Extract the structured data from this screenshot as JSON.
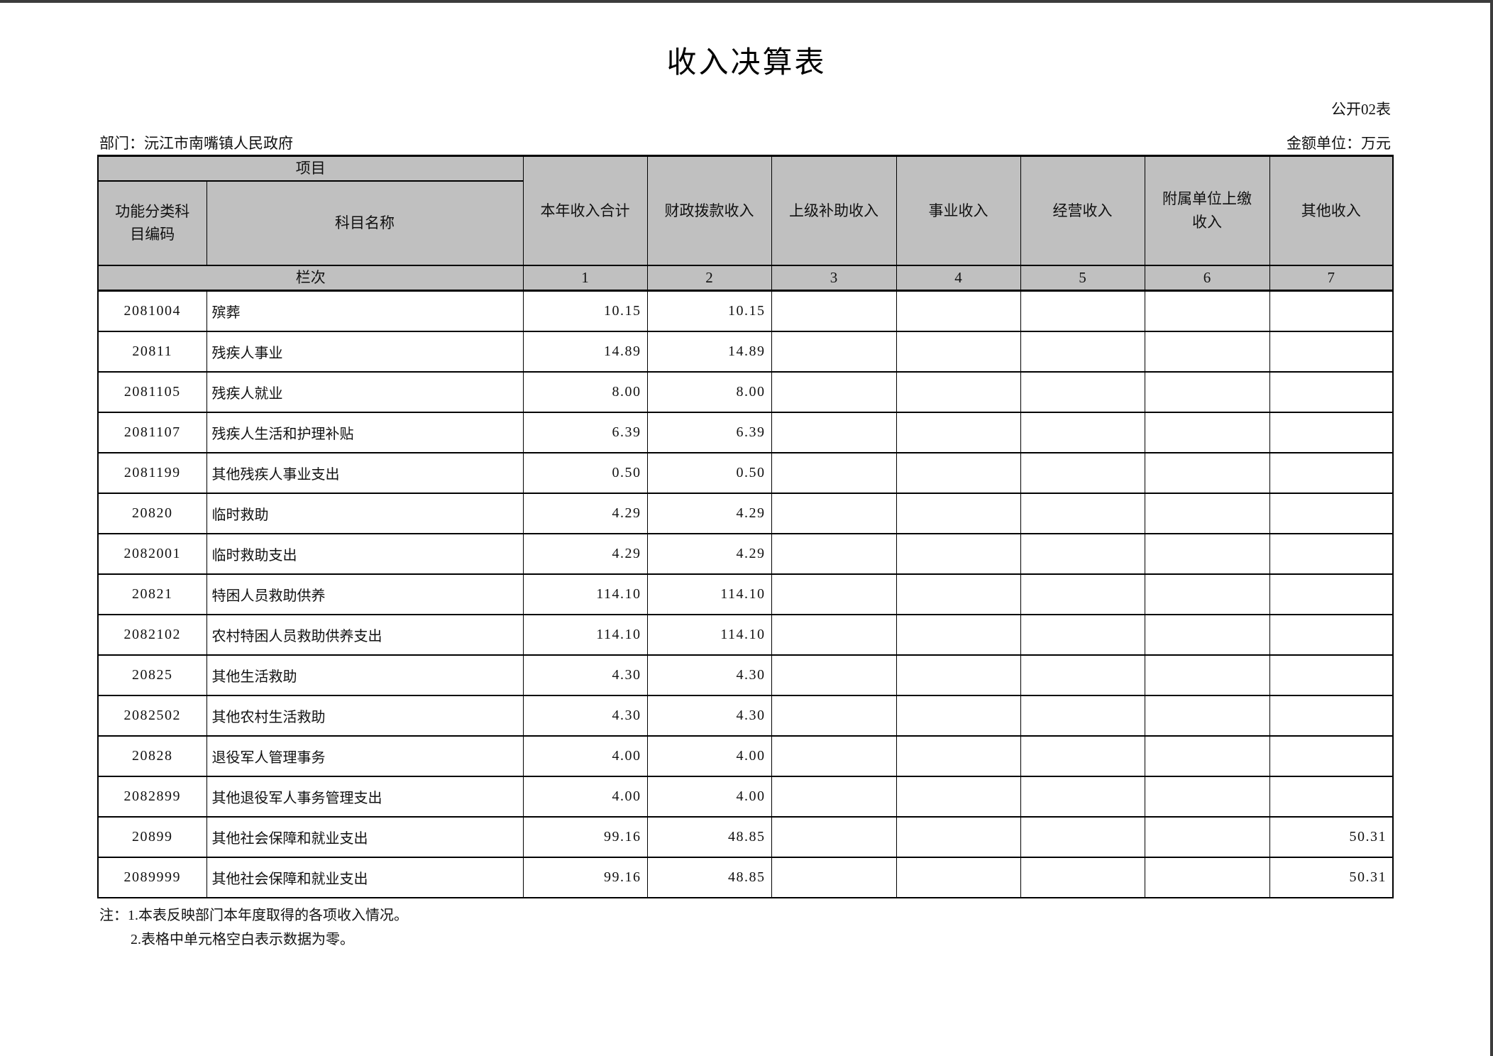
{
  "page": {
    "title": "收入决算表",
    "table_code": "公开02表",
    "department": "部门：沅江市南嘴镇人民政府",
    "unit": "金额单位：万元",
    "notes": [
      "注：1.本表反映部门本年度取得的各项收入情况。",
      "2.表格中单元格空白表示数据为零。"
    ]
  },
  "table": {
    "header": {
      "project_label": "项目",
      "code_label": "功能分类科目编码",
      "name_label": "科目名称",
      "columns": [
        "本年收入合计",
        "财政拨款收入",
        "上级补助收入",
        "事业收入",
        "经营收入",
        "附属单位上缴收入",
        "其他收入"
      ],
      "rank_label": "栏次",
      "column_numbers": [
        "1",
        "2",
        "3",
        "4",
        "5",
        "6",
        "7"
      ]
    },
    "rows": [
      {
        "code": "2081004",
        "name": "殡葬",
        "values": [
          "10.15",
          "10.15",
          "",
          "",
          "",
          "",
          ""
        ]
      },
      {
        "code": "20811",
        "name": "残疾人事业",
        "values": [
          "14.89",
          "14.89",
          "",
          "",
          "",
          "",
          ""
        ]
      },
      {
        "code": "2081105",
        "name": "残疾人就业",
        "values": [
          "8.00",
          "8.00",
          "",
          "",
          "",
          "",
          ""
        ]
      },
      {
        "code": "2081107",
        "name": "残疾人生活和护理补贴",
        "values": [
          "6.39",
          "6.39",
          "",
          "",
          "",
          "",
          ""
        ]
      },
      {
        "code": "2081199",
        "name": "其他残疾人事业支出",
        "values": [
          "0.50",
          "0.50",
          "",
          "",
          "",
          "",
          ""
        ]
      },
      {
        "code": "20820",
        "name": "临时救助",
        "values": [
          "4.29",
          "4.29",
          "",
          "",
          "",
          "",
          ""
        ]
      },
      {
        "code": "2082001",
        "name": "临时救助支出",
        "values": [
          "4.29",
          "4.29",
          "",
          "",
          "",
          "",
          ""
        ]
      },
      {
        "code": "20821",
        "name": "特困人员救助供养",
        "values": [
          "114.10",
          "114.10",
          "",
          "",
          "",
          "",
          ""
        ]
      },
      {
        "code": "2082102",
        "name": "农村特困人员救助供养支出",
        "values": [
          "114.10",
          "114.10",
          "",
          "",
          "",
          "",
          ""
        ]
      },
      {
        "code": "20825",
        "name": "其他生活救助",
        "values": [
          "4.30",
          "4.30",
          "",
          "",
          "",
          "",
          ""
        ]
      },
      {
        "code": "2082502",
        "name": "其他农村生活救助",
        "values": [
          "4.30",
          "4.30",
          "",
          "",
          "",
          "",
          ""
        ]
      },
      {
        "code": "20828",
        "name": "退役军人管理事务",
        "values": [
          "4.00",
          "4.00",
          "",
          "",
          "",
          "",
          ""
        ]
      },
      {
        "code": "2082899",
        "name": "其他退役军人事务管理支出",
        "values": [
          "4.00",
          "4.00",
          "",
          "",
          "",
          "",
          ""
        ]
      },
      {
        "code": "20899",
        "name": "其他社会保障和就业支出",
        "values": [
          "99.16",
          "48.85",
          "",
          "",
          "",
          "",
          "50.31"
        ]
      },
      {
        "code": "2089999",
        "name": "其他社会保障和就业支出",
        "values": [
          "99.16",
          "48.85",
          "",
          "",
          "",
          "",
          "50.31"
        ]
      }
    ]
  },
  "colors": {
    "header_bg": "#c0c0c0",
    "border": "#000000",
    "frame": "#3c3c3c"
  }
}
